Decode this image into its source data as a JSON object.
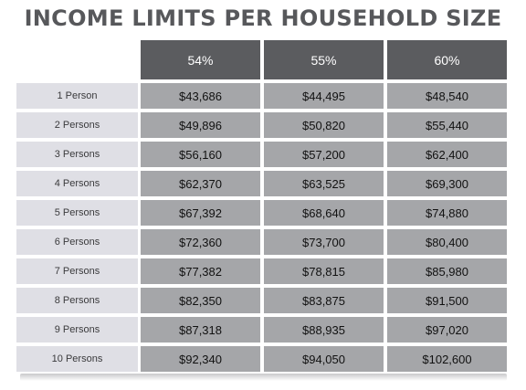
{
  "title": "INCOME LIMITS PER HOUSEHOLD SIZE",
  "columns": [
    "54%",
    "55%",
    "60%"
  ],
  "rows": [
    {
      "label": "1 Person",
      "values": [
        "$43,686",
        "$44,495",
        "$48,540"
      ]
    },
    {
      "label": "2 Persons",
      "values": [
        "$49,896",
        "$50,820",
        "$55,440"
      ]
    },
    {
      "label": "3 Persons",
      "values": [
        "$56,160",
        "$57,200",
        "$62,400"
      ]
    },
    {
      "label": "4 Persons",
      "values": [
        "$62,370",
        "$63,525",
        "$69,300"
      ]
    },
    {
      "label": "5 Persons",
      "values": [
        "$67,392",
        "$68,640",
        "$74,880"
      ]
    },
    {
      "label": "6 Persons",
      "values": [
        "$72,360",
        "$73,700",
        "$80,400"
      ]
    },
    {
      "label": "7 Persons",
      "values": [
        "$77,382",
        "$78,815",
        "$85,980"
      ]
    },
    {
      "label": "8 Persons",
      "values": [
        "$82,350",
        "$83,875",
        "$91,500"
      ]
    },
    {
      "label": "9 Persons",
      "values": [
        "$87,318",
        "$88,935",
        "$97,020"
      ]
    },
    {
      "label": "10 Persons",
      "values": [
        "$92,340",
        "$94,050",
        "$102,600"
      ]
    }
  ],
  "colors": {
    "title": "#57585b",
    "header_bg": "#5b5c5f",
    "label_bg": "#dfdfe5",
    "cell_bg": "#a5a6a9"
  }
}
